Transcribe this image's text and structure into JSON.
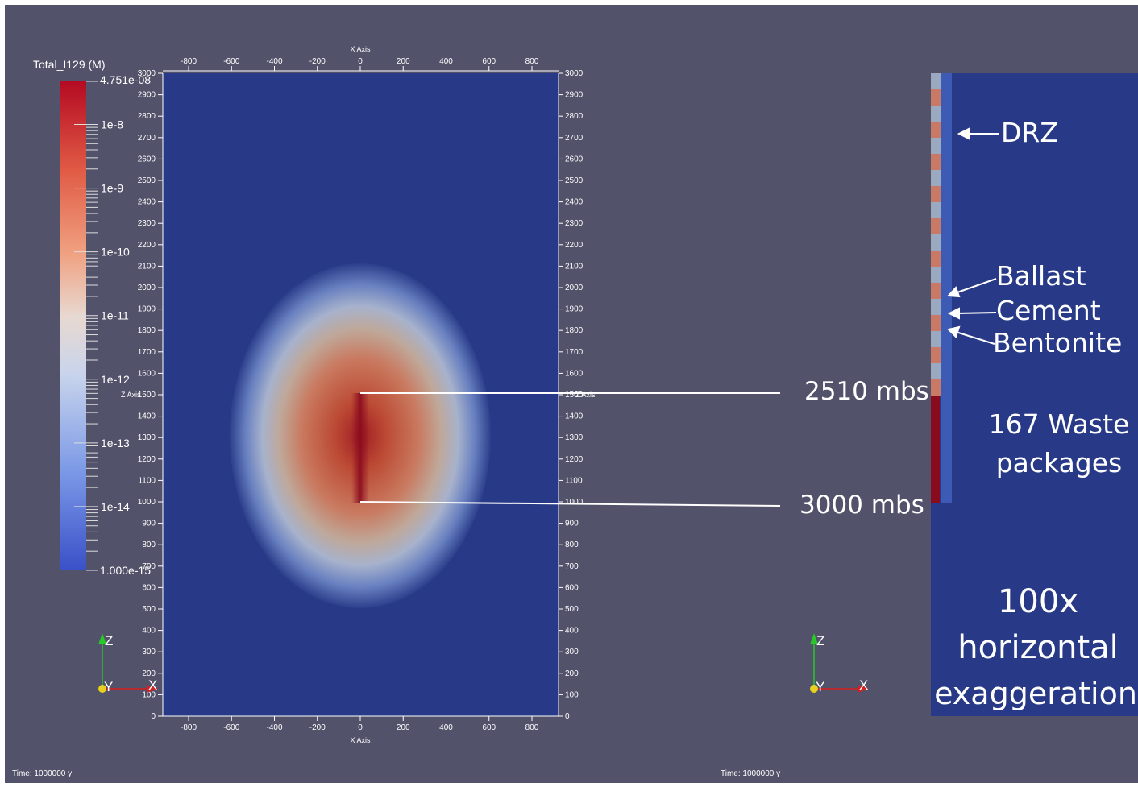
{
  "left_view": {
    "colorbar": {
      "title": "Total_I129 (M)",
      "max_label": "4.751e-08",
      "min_label": "1.000e-15",
      "decade_labels": [
        "1e-8",
        "1e-9",
        "1e-10",
        "1e-11",
        "1e-12",
        "1e-13",
        "1e-14"
      ],
      "scale": "log"
    },
    "x_axis": {
      "title": "X Axis",
      "ticks": [
        "-800",
        "-600",
        "-400",
        "-200",
        "0",
        "200",
        "400",
        "600",
        "800"
      ]
    },
    "z_axis": {
      "title": "Z Axis",
      "ticks": [
        "3000",
        "2900",
        "2800",
        "2700",
        "2600",
        "2500",
        "2400",
        "2300",
        "2200",
        "2100",
        "2000",
        "1900",
        "1800",
        "1700",
        "1600",
        "1500",
        "1400",
        "1300",
        "1200",
        "1100",
        "1000",
        "900",
        "800",
        "700",
        "600",
        "500",
        "400",
        "300",
        "200",
        "100",
        "0"
      ]
    },
    "time_label": "Time: 1000000 y",
    "orientation_axes": {
      "z": "Z",
      "y": "Y",
      "x": "X"
    },
    "colors": {
      "background": "#52526a",
      "domain": "#283a87",
      "plume_core": "#8a0a1e"
    }
  },
  "annotations": {
    "depth_top": "2510 mbs",
    "depth_bottom": "3000 mbs",
    "drz": "DRZ",
    "ballast": "Ballast",
    "cement": "Cement",
    "bentonite": "Bentonite",
    "waste_line1": "167 Waste",
    "waste_line2": "packages",
    "exag_line1": "100x",
    "exag_line2": "horizontal",
    "exag_line3": "exaggeration"
  },
  "right_view": {
    "time_label": "Time: 1000000 y",
    "orientation_axes": {
      "z": "Z",
      "y": "Y",
      "x": "X"
    },
    "colors": {
      "domain": "#283a87",
      "drz": "#3d5bb5",
      "ballast": "#9aa8c0",
      "cement": "#c97a66",
      "waste": "#8a0a1e"
    }
  }
}
